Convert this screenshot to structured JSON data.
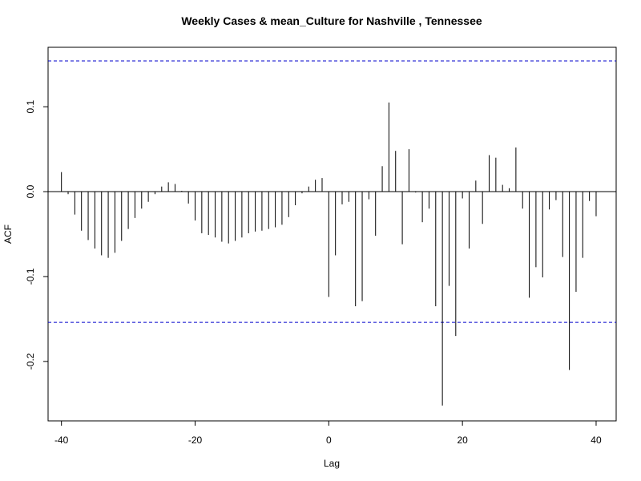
{
  "chart_data": {
    "type": "bar",
    "title": "Weekly Cases & mean_Culture for Nashville , Tennessee",
    "xlabel": "Lag",
    "ylabel": "ACF",
    "xlim": [
      -42,
      43
    ],
    "ylim": [
      -0.27,
      0.17
    ],
    "xticks": [
      -40,
      -20,
      0,
      20,
      40
    ],
    "xtick_labels": [
      "-40",
      "-20",
      "0",
      "20",
      "40"
    ],
    "yticks": [
      -0.2,
      -0.1,
      0.0,
      0.1
    ],
    "ytick_labels": [
      "-0.2",
      "-0.1",
      "0.0",
      "0.1"
    ],
    "confidence_bound": 0.154,
    "x": [
      -40,
      -39,
      -38,
      -37,
      -36,
      -35,
      -34,
      -33,
      -32,
      -31,
      -30,
      -29,
      -28,
      -27,
      -26,
      -25,
      -24,
      -23,
      -22,
      -21,
      -20,
      -19,
      -18,
      -17,
      -16,
      -15,
      -14,
      -13,
      -12,
      -11,
      -10,
      -9,
      -8,
      -7,
      -6,
      -5,
      -4,
      -3,
      -2,
      -1,
      0,
      1,
      2,
      3,
      4,
      5,
      6,
      7,
      8,
      9,
      10,
      11,
      12,
      13,
      14,
      15,
      16,
      17,
      18,
      19,
      20,
      21,
      22,
      23,
      24,
      25,
      26,
      27,
      28,
      29,
      30,
      31,
      32,
      33,
      34,
      35,
      36,
      37,
      38,
      39,
      40
    ],
    "values": [
      0.023,
      -0.003,
      -0.027,
      -0.046,
      -0.057,
      -0.067,
      -0.075,
      -0.078,
      -0.072,
      -0.058,
      -0.044,
      -0.031,
      -0.02,
      -0.012,
      -0.003,
      0.006,
      0.011,
      0.009,
      0.001,
      -0.014,
      -0.034,
      -0.049,
      -0.051,
      -0.054,
      -0.059,
      -0.061,
      -0.058,
      -0.054,
      -0.049,
      -0.047,
      -0.046,
      -0.044,
      -0.042,
      -0.039,
      -0.03,
      -0.016,
      -0.002,
      0.006,
      0.014,
      0.016,
      -0.124,
      -0.075,
      -0.015,
      -0.012,
      -0.135,
      -0.129,
      -0.009,
      -0.052,
      0.03,
      0.105,
      0.048,
      -0.062,
      0.05,
      -0.001,
      -0.036,
      -0.02,
      -0.135,
      -0.252,
      -0.111,
      -0.17,
      -0.008,
      -0.067,
      0.013,
      -0.038,
      0.043,
      0.04,
      0.008,
      0.004,
      0.052,
      -0.02,
      -0.125,
      -0.089,
      -0.101,
      -0.021,
      -0.01,
      -0.077,
      -0.21,
      -0.118,
      -0.078,
      -0.011,
      -0.029
    ],
    "colors": {
      "bars": "#000000",
      "confidence_lines": "#0000cc",
      "zero_line": "#000000"
    },
    "grid": false
  }
}
